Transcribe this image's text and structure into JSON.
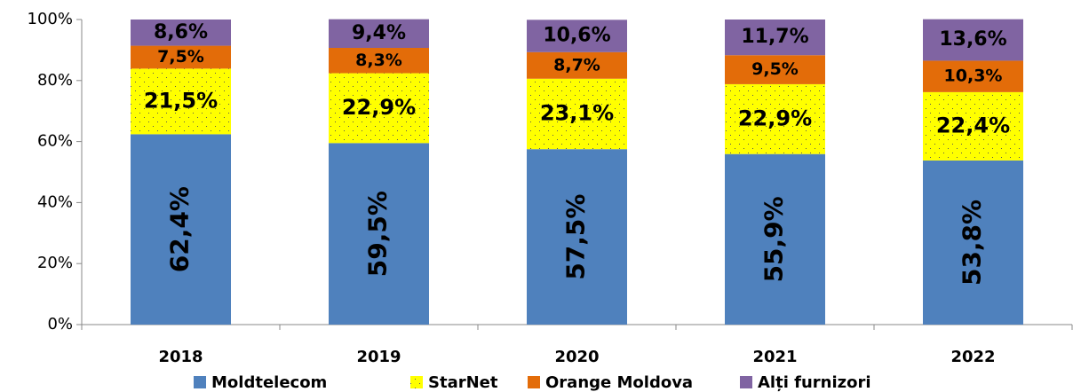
{
  "chart_data": {
    "type": "stacked_bar",
    "categories": [
      "2018",
      "2019",
      "2020",
      "2021",
      "2022"
    ],
    "series": [
      {
        "name": "Moldtelecom",
        "color": "#4f81bd",
        "values": [
          62.4,
          59.5,
          57.5,
          55.9,
          53.8
        ],
        "value_labels": [
          "62,4%",
          "59,5%",
          "57,5%",
          "55,9%",
          "53,8%"
        ]
      },
      {
        "name": "StarNet",
        "color": "#ffff00",
        "pattern": "dotted",
        "values": [
          21.5,
          22.9,
          23.1,
          22.9,
          22.4
        ],
        "value_labels": [
          "21,5%",
          "22,9%",
          "23,1%",
          "22,9%",
          "22,4%"
        ]
      },
      {
        "name": "Orange Moldova",
        "color": "#e36c09",
        "values": [
          7.5,
          8.3,
          8.7,
          9.5,
          10.3
        ],
        "value_labels": [
          "7,5%",
          "8,3%",
          "8,7%",
          "9,5%",
          "10,3%"
        ]
      },
      {
        "name": "Alți furnizori",
        "color": "#8064a2",
        "values": [
          8.6,
          9.4,
          10.6,
          11.7,
          13.6
        ],
        "value_labels": [
          "8,6%",
          "9,4%",
          "10,6%",
          "11,7%",
          "13,6%"
        ]
      }
    ],
    "ylim": [
      0,
      100
    ],
    "yticks": [
      {
        "value": 0,
        "label": "0%"
      },
      {
        "value": 20,
        "label": "20%"
      },
      {
        "value": 40,
        "label": "40%"
      },
      {
        "value": 60,
        "label": "60%"
      },
      {
        "value": 80,
        "label": "80%"
      },
      {
        "value": 100,
        "label": "100%"
      }
    ],
    "legend": "bottom"
  }
}
